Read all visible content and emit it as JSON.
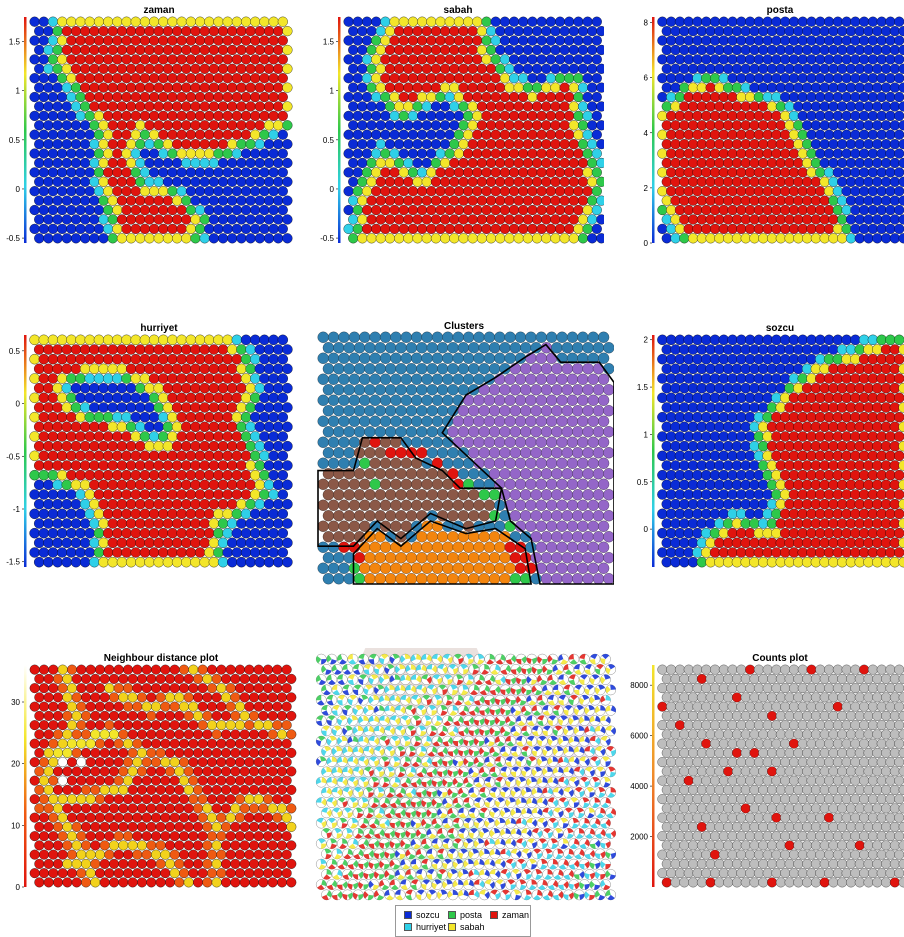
{
  "colors": {
    "blue": "#0a2bd6",
    "red": "#e0140e",
    "cyan": "#2fd0e8",
    "yellow": "#f3e62a",
    "green": "#2ec84a",
    "steelblue": "#2f7fb0",
    "purple": "#9466c8",
    "brown": "#8b5847",
    "orange": "#f3850e",
    "gray": "#bdbdbd",
    "orange_red": "#ef5a12",
    "gold": "#f2d21c"
  },
  "chart_data": [
    {
      "type": "heatmap",
      "title": "zaman",
      "ylim": [
        -0.55,
        1.75
      ],
      "yticks": [
        -0.5,
        0,
        0.5,
        1,
        1.5
      ],
      "yticklabels": [
        "-0.5",
        "0",
        "0.5",
        "1",
        "1.5"
      ],
      "color_scale": "blue-cyan-green-yellow-red"
    },
    {
      "type": "heatmap",
      "title": "sabah",
      "ylim": [
        -0.55,
        1.75
      ],
      "yticks": [
        -0.5,
        0,
        0.5,
        1,
        1.5
      ],
      "yticklabels": [
        "-0.5",
        "0",
        "0.5",
        "1",
        "1.5"
      ],
      "color_scale": "blue-cyan-green-yellow-red"
    },
    {
      "type": "heatmap",
      "title": "posta",
      "ylim": [
        0,
        8.2
      ],
      "yticks": [
        0,
        2,
        4,
        6,
        8
      ],
      "yticklabels": [
        "0",
        "2",
        "4",
        "6",
        "8"
      ],
      "color_scale": "blue-cyan-green-yellow-red"
    },
    {
      "type": "heatmap",
      "title": "hurriyet",
      "ylim": [
        -1.55,
        0.65
      ],
      "yticks": [
        -1.5,
        -1,
        -0.5,
        0,
        0.5
      ],
      "yticklabels": [
        "-1.5",
        "-1",
        "-0.5",
        "0",
        "0.5"
      ],
      "color_scale": "blue-cyan-green-yellow-red"
    },
    {
      "type": "heatmap",
      "title": "Clusters",
      "clusters": 5,
      "cluster_colors": [
        "#2f7fb0",
        "#9466c8",
        "#8b5847",
        "#f3850e",
        "#e0140e"
      ]
    },
    {
      "type": "heatmap",
      "title": "sozcu",
      "ylim": [
        -0.4,
        2.05
      ],
      "yticks": [
        0,
        0.5,
        1,
        1.5,
        2
      ],
      "yticklabels": [
        "0",
        "0.5",
        "1",
        "1.5",
        "2"
      ],
      "color_scale": "blue-cyan-green-yellow-red"
    },
    {
      "type": "heatmap",
      "title": "Neighbour distance plot",
      "ylim": [
        0,
        36
      ],
      "yticks": [
        0,
        10,
        20,
        30
      ],
      "yticklabels": [
        "0",
        "10",
        "20",
        "30"
      ],
      "color_scale": "red-orange-yellow-white"
    },
    {
      "type": "heatmap",
      "title": "",
      "subtype": "codes plot (pie per node)",
      "series": [
        {
          "name": "sozcu"
        },
        {
          "name": "hurriyet"
        },
        {
          "name": "posta"
        },
        {
          "name": "sabah"
        },
        {
          "name": "zaman"
        }
      ]
    },
    {
      "type": "heatmap",
      "title": "Counts plot",
      "ylim": [
        0,
        8800
      ],
      "yticks": [
        2000,
        4000,
        6000,
        8000
      ],
      "yticklabels": [
        "2000",
        "4000",
        "6000",
        "8000"
      ],
      "color_scale": "red-yellow"
    }
  ],
  "legend": {
    "items": [
      {
        "label": "sozcu",
        "color": "#0a2bd6"
      },
      {
        "label": "hurriyet",
        "color": "#2fd0e8"
      },
      {
        "label": "posta",
        "color": "#2ec84a"
      },
      {
        "label": "sabah",
        "color": "#f3e62a"
      },
      {
        "label": "zaman",
        "color": "#e0140e"
      }
    ]
  }
}
